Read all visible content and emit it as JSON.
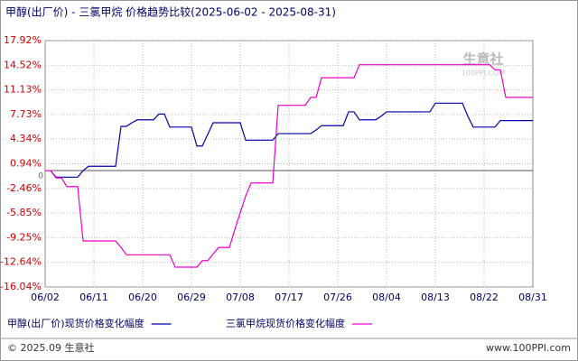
{
  "chart_data": {
    "type": "line",
    "title": "甲醇(出厂价) - 三氯甲烷 价格趋势比较(2025-06-02 - 2025-08-31)",
    "categories": [
      "06/02",
      null,
      null,
      null,
      null,
      null,
      null,
      null,
      null,
      "06/11",
      null,
      null,
      null,
      null,
      null,
      null,
      null,
      null,
      "06/20",
      null,
      null,
      null,
      null,
      null,
      null,
      null,
      null,
      "06/29",
      null,
      null,
      null,
      null,
      null,
      null,
      null,
      null,
      "07/08",
      null,
      null,
      null,
      null,
      null,
      null,
      null,
      null,
      "07/17",
      null,
      null,
      null,
      null,
      null,
      null,
      null,
      null,
      "07/26",
      null,
      null,
      null,
      null,
      null,
      null,
      null,
      null,
      "08/04",
      null,
      null,
      null,
      null,
      null,
      null,
      null,
      null,
      "08/13",
      null,
      null,
      null,
      null,
      null,
      null,
      null,
      null,
      "08/22",
      null,
      null,
      null,
      null,
      null,
      null,
      null,
      null,
      "08/31"
    ],
    "series": [
      {
        "name": "甲醇(出厂价)现货价格变化幅度",
        "color": "#0000aa",
        "values": [
          0,
          0,
          -0.9,
          -0.9,
          -0.9,
          -0.9,
          -0.9,
          0,
          0.6,
          0.6,
          0.6,
          0.6,
          0.6,
          0.6,
          6.1,
          6.1,
          6.6,
          7.0,
          7.0,
          7.0,
          7.0,
          7.8,
          7.8,
          6.0,
          6.0,
          6.0,
          6.0,
          6.0,
          3.4,
          3.4,
          5.0,
          6.6,
          6.6,
          6.6,
          6.6,
          6.6,
          6.6,
          4.2,
          4.2,
          4.2,
          4.2,
          4.2,
          4.2,
          5.1,
          5.1,
          5.1,
          5.1,
          5.1,
          5.1,
          5.1,
          5.6,
          6.2,
          6.2,
          6.2,
          6.2,
          6.2,
          8.1,
          8.1,
          7.0,
          7.0,
          7.0,
          7.0,
          7.5,
          8.1,
          8.1,
          8.1,
          8.1,
          8.1,
          8.1,
          8.1,
          8.1,
          8.1,
          9.3,
          9.3,
          9.3,
          9.3,
          9.3,
          9.3,
          7.5,
          6.0,
          6.0,
          6.0,
          6.0,
          6.0,
          6.9,
          6.9,
          6.9,
          6.9,
          6.9,
          6.9,
          6.9
        ]
      },
      {
        "name": "三氯甲烷现货价格变化幅度",
        "color": "#ee00cc",
        "values": [
          0,
          0,
          -1,
          -1,
          -2.2,
          -2.2,
          -2.2,
          -9.7,
          -9.7,
          -9.7,
          -9.7,
          -9.7,
          -9.7,
          -9.7,
          -10.6,
          -11.6,
          -11.6,
          -11.6,
          -11.6,
          -11.6,
          -11.6,
          -11.6,
          -11.6,
          -11.6,
          -13.3,
          -13.3,
          -13.3,
          -13.3,
          -13.3,
          -12.4,
          -12.4,
          -11.5,
          -10.6,
          -10.6,
          -10.6,
          -8.1,
          -5.8,
          -3.5,
          -1.7,
          -1.7,
          -1.7,
          -1.7,
          -1.7,
          9.0,
          9.0,
          9.0,
          9.0,
          9.0,
          9.0,
          10.1,
          10.1,
          12.8,
          12.8,
          12.8,
          12.8,
          12.8,
          12.8,
          12.8,
          14.6,
          14.6,
          14.6,
          14.6,
          14.6,
          14.6,
          14.6,
          14.6,
          14.6,
          14.6,
          14.6,
          14.6,
          14.6,
          14.6,
          14.6,
          14.6,
          14.6,
          14.6,
          14.6,
          14.6,
          14.6,
          14.6,
          14.6,
          14.6,
          14.6,
          13.9,
          13.9,
          10.1,
          10.1,
          10.1,
          10.1,
          10.1,
          10.1
        ]
      }
    ],
    "ylim": [
      -16.04,
      17.92
    ],
    "yticks": [
      {
        "value": 17.92,
        "label": "17.92%"
      },
      {
        "value": 14.52,
        "label": "14.52%"
      },
      {
        "value": 11.13,
        "label": "11.13%"
      },
      {
        "value": 7.73,
        "label": "7.73%"
      },
      {
        "value": 4.34,
        "label": "4.34%"
      },
      {
        "value": 0.94,
        "label": "0.94%"
      },
      {
        "value": -2.46,
        "label": "-2.46%"
      },
      {
        "value": -5.85,
        "label": "-5.85%"
      },
      {
        "value": -9.25,
        "label": "-9.25%"
      },
      {
        "value": -12.64,
        "label": "-12.64%"
      },
      {
        "value": -16.04,
        "label": "-16.04%"
      }
    ],
    "baseline": 0,
    "grid": true,
    "watermark": "生意社",
    "watermark_sub": "100PPI.COM",
    "footer_left": "© 2025.09 生意社",
    "footer_right": "www.100PPI.com"
  }
}
